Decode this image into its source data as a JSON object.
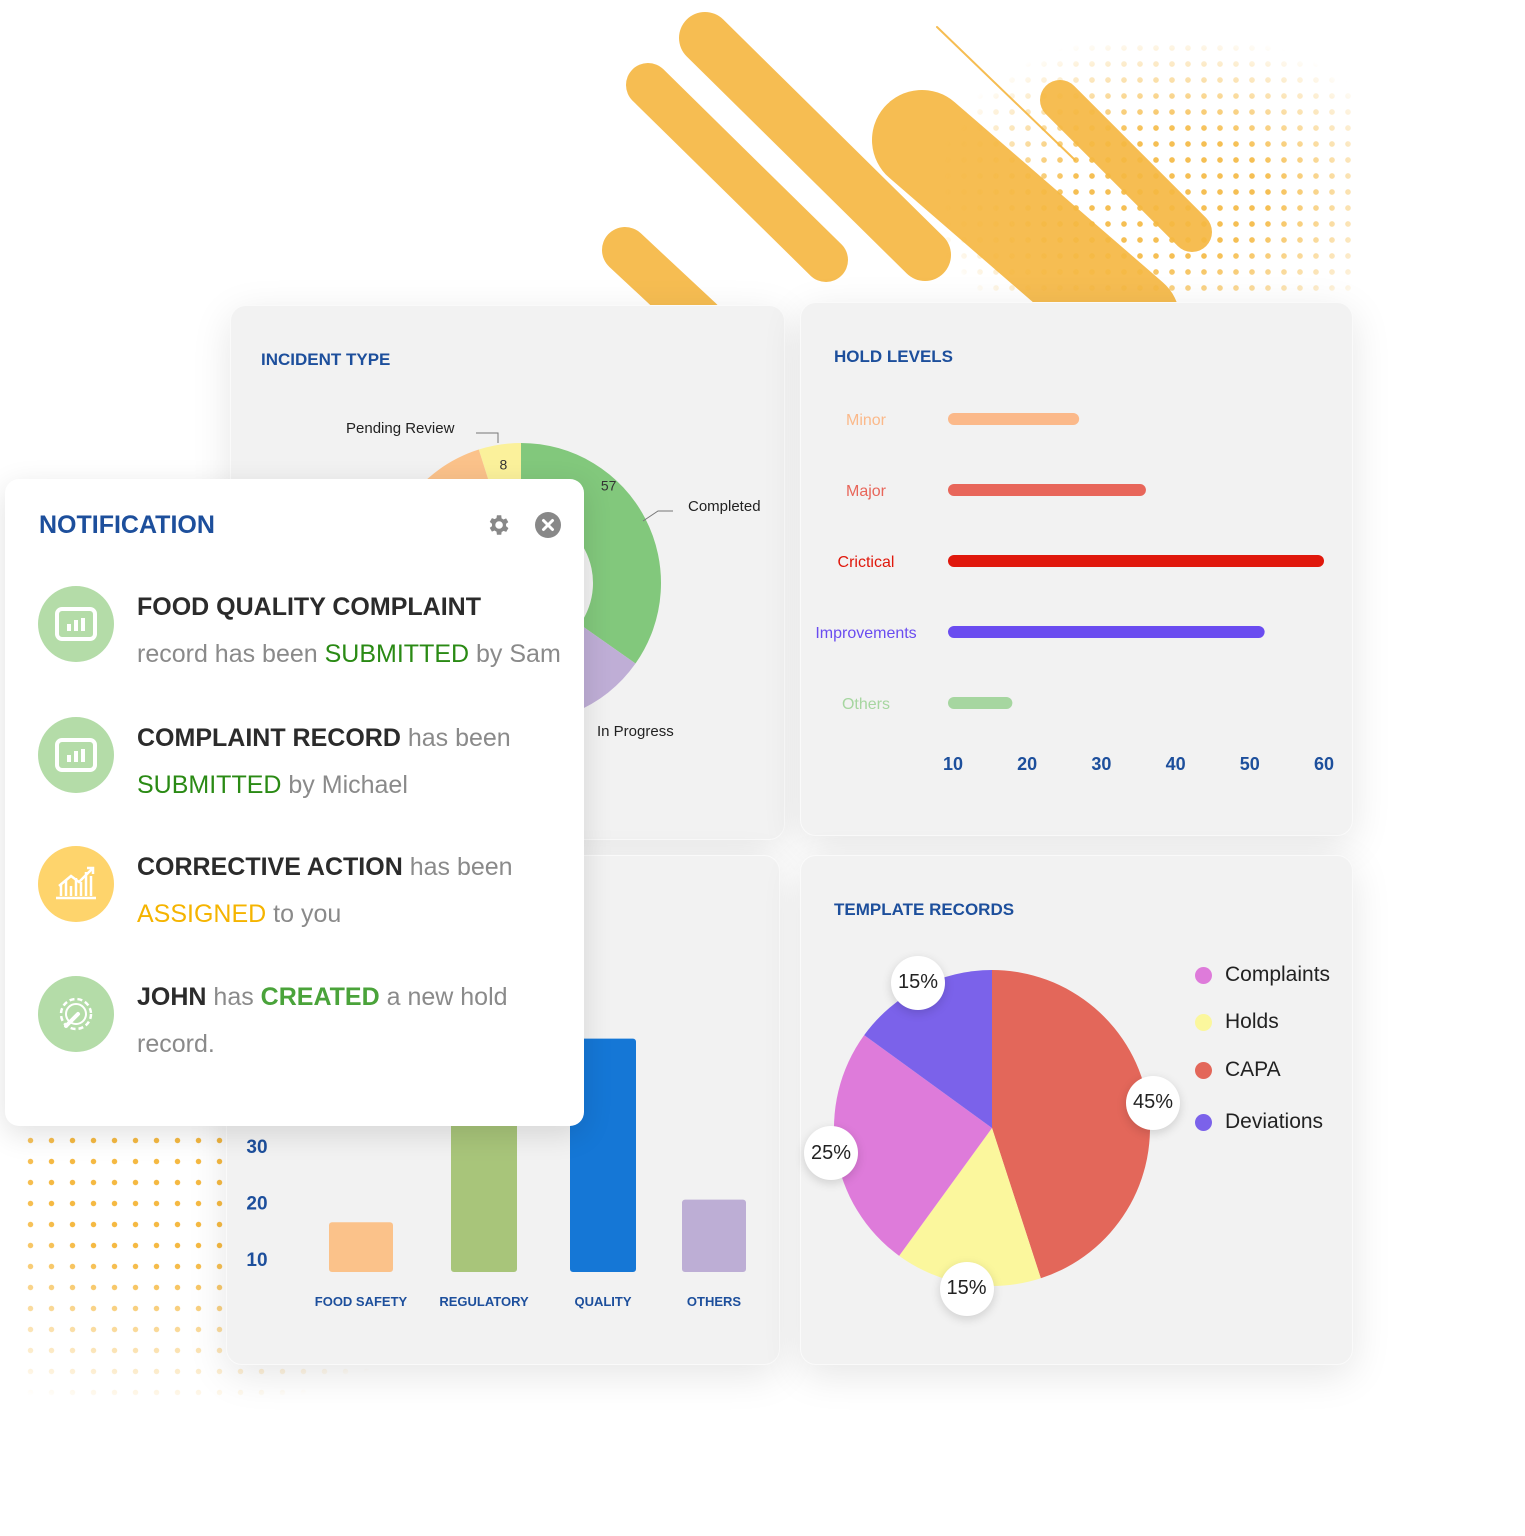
{
  "colors": {
    "accent": "#1d4f9c",
    "decor": "#f5b942"
  },
  "incident": {
    "title": "INCIDENT TYPE",
    "chart_data": {
      "type": "pie",
      "donut": true,
      "slices": [
        {
          "name": "Pending Review",
          "value": 8,
          "color": "#fbf19b",
          "label": "8"
        },
        {
          "name": "Completed",
          "value": 57,
          "color": "#82c87c",
          "label": "57"
        },
        {
          "name": "In Progress",
          "value": 30,
          "color": "#bfaed6"
        },
        {
          "name": "",
          "value": 69,
          "color": "#fbc28a"
        }
      ]
    }
  },
  "hold": {
    "title": "HOLD LEVELS",
    "chart_data": {
      "type": "bar",
      "orientation": "horizontal",
      "categories": [
        "Minor",
        "Major",
        "Crictical",
        "Improvements",
        "Others"
      ],
      "values": [
        27,
        36,
        60,
        52,
        18
      ],
      "colors": [
        "#fbb98a",
        "#e8665a",
        "#e0180c",
        "#6a4cf0",
        "#a6d6a0"
      ],
      "xticks": [
        10,
        20,
        30,
        40,
        50,
        60
      ],
      "xlim": [
        10,
        60
      ]
    }
  },
  "bars": {
    "chart_data": {
      "type": "bar",
      "categories": [
        "FOOD SAFETY",
        "REGULATORY",
        "QUALITY",
        "OTHERS"
      ],
      "values": [
        16.5,
        40,
        49,
        20.5
      ],
      "colors": [
        "#fbc28a",
        "#a8c57a",
        "#1577d6",
        "#bdaed5"
      ],
      "yticks": [
        10,
        20,
        30
      ]
    }
  },
  "template": {
    "title": "TEMPLATE RECORDS",
    "chart_data": {
      "type": "pie",
      "slices": [
        {
          "name": "CAPA",
          "value": 45,
          "color": "#e3675a",
          "label": "45%"
        },
        {
          "name": "Holds",
          "value": 15,
          "color": "#fbf79d",
          "label": "15%"
        },
        {
          "name": "Complaints",
          "value": 25,
          "color": "#de7bda",
          "label": "25%"
        },
        {
          "name": "Deviations",
          "value": 15,
          "color": "#7b62ea",
          "label": "15%"
        }
      ],
      "legend": [
        {
          "name": "Complaints",
          "color": "#de7bda"
        },
        {
          "name": "Holds",
          "color": "#fbf79d"
        },
        {
          "name": "CAPA",
          "color": "#e3675a"
        },
        {
          "name": "Deviations",
          "color": "#7b62ea"
        }
      ],
      "legend_position": "right"
    }
  },
  "notification": {
    "title": "NOTIFICATION",
    "icons": [
      "gear-icon",
      "close-icon"
    ],
    "items": [
      {
        "icon": "chart-board-icon",
        "a": "FOOD QUALITY COMPLAINT",
        "b": "record has been ",
        "c": "SUBMITTED",
        "d": " by Sam"
      },
      {
        "icon": "chart-board-icon",
        "a": "COMPLAINT RECORD",
        "b": " has been ",
        "c": "SUBMITTED",
        "d": " by Michael"
      },
      {
        "icon": "growth-chart-icon",
        "a": "CORRECTIVE ACTION",
        "b": " has been ",
        "c": "ASSIGNED",
        "d": " to you"
      },
      {
        "icon": "gear-wrench-icon",
        "a": "JOHN",
        "b": " has ",
        "c": "CREATED",
        "d": " a new hold record."
      }
    ]
  }
}
